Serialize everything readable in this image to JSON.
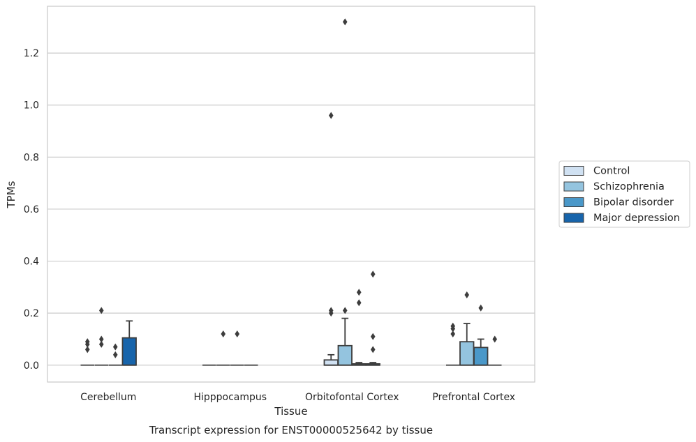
{
  "chart_data": {
    "type": "box",
    "xlabel": "Tissue",
    "ylabel": "TPMs",
    "caption": "Transcript expression for ENST00000525642 by tissue",
    "ylim": [
      -0.065,
      1.38
    ],
    "yticks": [
      0.0,
      0.2,
      0.4,
      0.6,
      0.8,
      1.0,
      1.2
    ],
    "ytick_labels": [
      "0.0",
      "0.2",
      "0.4",
      "0.6",
      "0.8",
      "1.0",
      "1.2"
    ],
    "grid": true,
    "legend_position": "right",
    "categories": [
      "Cerebellum",
      "Hipppocampus",
      "Orbitofontal Cortex",
      "Prefrontal Cortex"
    ],
    "series": [
      {
        "name": "Control",
        "color": "#d0e1f2",
        "boxes": [
          {
            "q1": 0,
            "median": 0,
            "q3": 0,
            "whislo": 0,
            "whishi": 0,
            "fliers": [
              0.06,
              0.08,
              0.09
            ]
          },
          {
            "q1": 0,
            "median": 0,
            "q3": 0,
            "whislo": 0,
            "whishi": 0,
            "fliers": []
          },
          {
            "q1": 0,
            "median": 0,
            "q3": 0.02,
            "whislo": 0,
            "whishi": 0.04,
            "fliers": [
              0.2,
              0.21,
              0.96
            ]
          },
          {
            "q1": 0,
            "median": 0,
            "q3": 0,
            "whislo": 0,
            "whishi": 0,
            "fliers": [
              0.12,
              0.14,
              0.15
            ]
          }
        ]
      },
      {
        "name": "Schizophrenia",
        "color": "#94c4df",
        "boxes": [
          {
            "q1": 0,
            "median": 0,
            "q3": 0,
            "whislo": 0,
            "whishi": 0,
            "fliers": [
              0.08,
              0.1,
              0.21
            ]
          },
          {
            "q1": 0,
            "median": 0,
            "q3": 0,
            "whislo": 0,
            "whishi": 0,
            "fliers": [
              0.12
            ]
          },
          {
            "q1": 0,
            "median": 0,
            "q3": 0.075,
            "whislo": 0,
            "whishi": 0.18,
            "fliers": [
              0.21,
              1.32
            ]
          },
          {
            "q1": 0,
            "median": 0,
            "q3": 0.09,
            "whislo": 0,
            "whishi": 0.16,
            "fliers": [
              0.27
            ]
          }
        ]
      },
      {
        "name": "Bipolar disorder",
        "color": "#4a98c9",
        "boxes": [
          {
            "q1": 0,
            "median": 0,
            "q3": 0,
            "whislo": 0,
            "whishi": 0,
            "fliers": [
              0.04,
              0.07
            ]
          },
          {
            "q1": 0,
            "median": 0,
            "q3": 0,
            "whislo": 0,
            "whishi": 0,
            "fliers": [
              0.12
            ]
          },
          {
            "q1": 0,
            "median": 0,
            "q3": 0.005,
            "whislo": 0,
            "whishi": 0.01,
            "fliers": [
              0.24,
              0.28
            ]
          },
          {
            "q1": 0,
            "median": 0,
            "q3": 0.068,
            "whislo": 0,
            "whishi": 0.1,
            "fliers": [
              0.22
            ]
          }
        ]
      },
      {
        "name": "Major depression",
        "color": "#1764ab",
        "boxes": [
          {
            "q1": 0,
            "median": 0,
            "q3": 0.105,
            "whislo": 0,
            "whishi": 0.17,
            "fliers": []
          },
          {
            "q1": 0,
            "median": 0,
            "q3": 0,
            "whislo": 0,
            "whishi": 0,
            "fliers": []
          },
          {
            "q1": 0,
            "median": 0,
            "q3": 0.005,
            "whislo": 0,
            "whishi": 0.01,
            "fliers": [
              0.06,
              0.11,
              0.35
            ]
          },
          {
            "q1": 0,
            "median": 0,
            "q3": 0,
            "whislo": 0,
            "whishi": 0,
            "fliers": [
              0.1
            ]
          }
        ]
      }
    ]
  }
}
